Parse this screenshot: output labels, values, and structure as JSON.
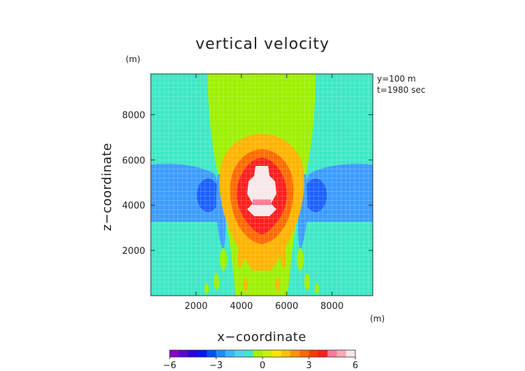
{
  "chart_data": {
    "type": "heatmap",
    "title": "vertical velocity",
    "xlabel": "x−coordinate",
    "ylabel": "z−coordinate",
    "x_unit": "(m)",
    "y_unit": "(m)",
    "annotation_lines": [
      "y=100 m",
      "t=1980 sec"
    ],
    "xlim": [
      0,
      9800
    ],
    "ylim": [
      0,
      9800
    ],
    "xticks": [
      2000,
      4000,
      6000,
      8000
    ],
    "yticks": [
      2000,
      4000,
      6000,
      8000
    ],
    "xtick_labels": [
      "2000",
      "4000",
      "6000",
      "8000"
    ],
    "ytick_labels": [
      "2000",
      "4000",
      "6000",
      "8000"
    ],
    "grid": true,
    "colorbar": {
      "min": -6,
      "max": 6,
      "tick_values": [
        -6,
        -3,
        0,
        3,
        6
      ],
      "tick_labels": [
        "−6",
        "−3",
        "0",
        "3",
        "6"
      ],
      "colors": [
        "#8a00c8",
        "#5a00d8",
        "#2a00e6",
        "#0016ff",
        "#0050ff",
        "#1e8cff",
        "#3cb4ff",
        "#4fd2f0",
        "#40e6c8",
        "#a6f000",
        "#c8f000",
        "#ffe600",
        "#ffc000",
        "#ff9600",
        "#ff6a00",
        "#ff3c00",
        "#ff1e1e",
        "#ff7a96",
        "#ffaab4",
        "#f4e6ea"
      ]
    },
    "field_levels": [
      {
        "level": "background",
        "value": 0.0,
        "color": "#3ee8c6"
      },
      {
        "level": "updraft_column",
        "value": 1.5,
        "color": "#9ef000"
      },
      {
        "level": "downdraft_side",
        "value": -1.5,
        "color": "#3c9cff"
      },
      {
        "level": "downdraft_core",
        "value": -3.0,
        "color": "#1c60ff"
      },
      {
        "level": "moderate_updraft",
        "value": 3.0,
        "color": "#ffb400"
      },
      {
        "level": "strong_updraft",
        "value": 4.5,
        "color": "#ff1e1e"
      },
      {
        "level": "peak_updraft",
        "value": 6.0,
        "color": "#f8e8ea"
      }
    ]
  }
}
